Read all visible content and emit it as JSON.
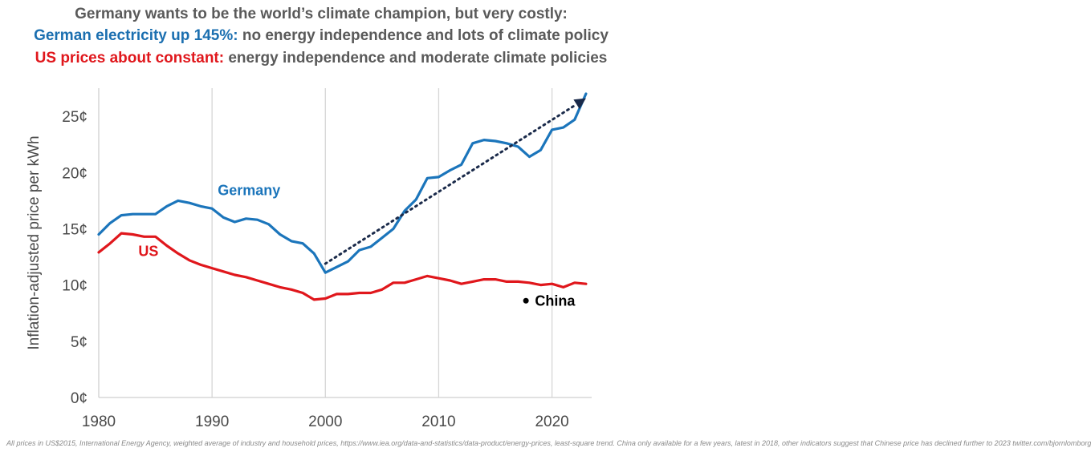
{
  "header": {
    "line1": "Germany wants to be the world’s climate champion, but very costly:",
    "line2_highlight": "German electricity up 145%:",
    "line2_rest": " no energy independence and lots of climate policy",
    "line3_highlight": "US prices about constant:",
    "line3_rest": " energy independence and moderate climate policies"
  },
  "footnote": "All prices in US$2015, International Energy Agency, weighted average of industry and household prices, https://www.iea.org/data-and-statistics/data-product/energy-prices, least-square trend. China only available for a few years, latest in 2018, other indicators suggest that Chinese price has declined further to 2023 twitter.com/bjornlomborg",
  "chart_data": {
    "type": "line",
    "ylabel": "Inflation-adjusted price per kWh",
    "xlabel": "",
    "xlim": [
      1980,
      2023.5
    ],
    "ylim": [
      0,
      27.5
    ],
    "x_ticks": [
      1980,
      1990,
      2000,
      2010,
      2020
    ],
    "y_ticks": [
      0,
      5,
      10,
      15,
      20,
      25
    ],
    "y_tick_labels": [
      "0¢",
      "5¢",
      "10¢",
      "15¢",
      "20¢",
      "25¢"
    ],
    "grid": "vertical",
    "colors": {
      "germany": "#1b75bb",
      "us": "#e0171c",
      "trend": "#1a2a4a",
      "china": "#000000"
    },
    "series": [
      {
        "name": "Germany",
        "x": [
          1980,
          1981,
          1982,
          1983,
          1984,
          1985,
          1986,
          1987,
          1988,
          1989,
          1990,
          1991,
          1992,
          1993,
          1994,
          1995,
          1996,
          1997,
          1998,
          1999,
          2000,
          2001,
          2002,
          2003,
          2004,
          2005,
          2006,
          2007,
          2008,
          2009,
          2010,
          2011,
          2012,
          2013,
          2014,
          2015,
          2016,
          2017,
          2018,
          2019,
          2020,
          2021,
          2022,
          2023
        ],
        "values": [
          14.5,
          15.5,
          16.2,
          16.3,
          16.3,
          16.3,
          17.0,
          17.5,
          17.3,
          17.0,
          16.8,
          16.0,
          15.6,
          15.9,
          15.8,
          15.4,
          14.5,
          13.9,
          13.7,
          12.8,
          11.1,
          11.6,
          12.1,
          13.1,
          13.4,
          14.2,
          15.0,
          16.6,
          17.6,
          19.5,
          19.6,
          20.2,
          20.7,
          22.6,
          22.9,
          22.8,
          22.6,
          22.3,
          21.4,
          22.0,
          23.8,
          24.0,
          24.7,
          27.0
        ]
      },
      {
        "name": "US",
        "x": [
          1980,
          1981,
          1982,
          1983,
          1984,
          1985,
          1986,
          1987,
          1988,
          1989,
          1990,
          1991,
          1992,
          1993,
          1994,
          1995,
          1996,
          1997,
          1998,
          1999,
          2000,
          2001,
          2002,
          2003,
          2004,
          2005,
          2006,
          2007,
          2008,
          2009,
          2010,
          2011,
          2012,
          2013,
          2014,
          2015,
          2016,
          2017,
          2018,
          2019,
          2020,
          2021,
          2022,
          2023
        ],
        "values": [
          12.9,
          13.7,
          14.6,
          14.5,
          14.3,
          14.3,
          13.5,
          12.8,
          12.2,
          11.8,
          11.5,
          11.2,
          10.9,
          10.7,
          10.4,
          10.1,
          9.8,
          9.6,
          9.3,
          8.7,
          8.8,
          9.2,
          9.2,
          9.3,
          9.3,
          9.6,
          10.2,
          10.2,
          10.5,
          10.8,
          10.6,
          10.4,
          10.1,
          10.3,
          10.5,
          10.5,
          10.3,
          10.3,
          10.2,
          10.0,
          10.1,
          9.8,
          10.2,
          10.1
        ]
      },
      {
        "name": "trend",
        "x": [
          2000,
          2023
        ],
        "values": [
          11.9,
          26.6
        ]
      }
    ],
    "annotations": [
      {
        "text": "Germany",
        "x": 1990.5,
        "y": 18.4
      },
      {
        "text": "US",
        "x": 1983.5,
        "y": 13.0
      },
      {
        "text": "China",
        "x": 2018.5,
        "y": 8.6,
        "marker_x": 2017.7,
        "marker_y": 8.6
      }
    ]
  }
}
